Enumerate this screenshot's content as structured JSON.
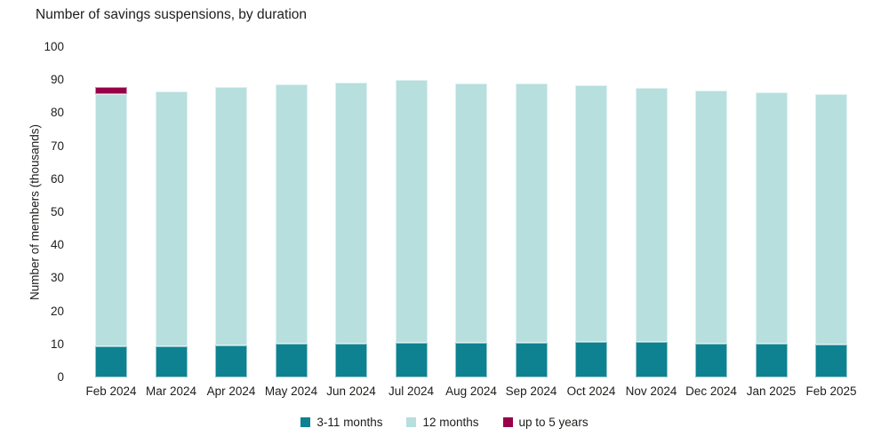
{
  "title": "Number of savings suspensions, by duration",
  "colors": {
    "text": "#1d1d1b",
    "background": "#ffffff",
    "series_3_11_months": "#0e8290",
    "series_12_months": "#b6dfde",
    "series_up_to_5_years": "#98004a"
  },
  "chart_data": {
    "type": "bar",
    "stacked": true,
    "title": "Number of savings suspensions, by duration",
    "xlabel": "",
    "ylabel": "Number of members (thousands)",
    "ylim": [
      0,
      100
    ],
    "yticks": [
      0,
      10,
      20,
      30,
      40,
      50,
      60,
      70,
      80,
      90,
      100
    ],
    "grid": false,
    "legend_position": "bottom",
    "categories": [
      "Feb 2024",
      "Mar 2024",
      "Apr 2024",
      "May 2024",
      "Jun 2024",
      "Jul 2024",
      "Aug 2024",
      "Sep 2024",
      "Oct 2024",
      "Nov 2024",
      "Dec 2024",
      "Jan 2025",
      "Feb 2025"
    ],
    "series": [
      {
        "name": "3-11 months",
        "color": "#0e8290",
        "values": [
          9.4,
          9.3,
          9.7,
          10.2,
          10.1,
          10.4,
          10.5,
          10.5,
          10.8,
          10.8,
          10.3,
          10.3,
          10.0
        ]
      },
      {
        "name": "12 months",
        "color": "#b6dfde",
        "values": [
          76.3,
          77.2,
          78.1,
          78.5,
          79.1,
          79.6,
          78.5,
          78.4,
          77.7,
          76.8,
          76.4,
          75.9,
          75.8
        ]
      },
      {
        "name": "up to 5 years",
        "color": "#98004a",
        "values": [
          2.2,
          0,
          0,
          0,
          0,
          0,
          0,
          0,
          0,
          0,
          0,
          0,
          0
        ]
      }
    ]
  },
  "legend": {
    "items": [
      {
        "label": "3-11 months"
      },
      {
        "label": "12 months"
      },
      {
        "label": "up to 5 years"
      }
    ]
  }
}
